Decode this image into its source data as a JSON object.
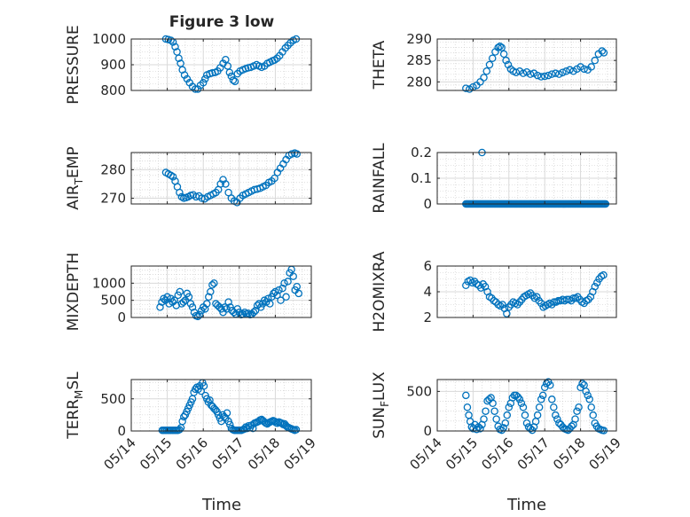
{
  "title": "Figure 3 low",
  "xlabel": "Time",
  "x_ticks": [
    "05/14",
    "05/15",
    "05/16",
    "05/17",
    "05/18",
    "05/19"
  ],
  "colors": {
    "marker": "#0072BD",
    "axis": "#262626",
    "grid": "#d9d9d9",
    "grid_minor": "#c8c8c8"
  },
  "chart_data": [
    {
      "type": "scatter",
      "id": "pressure",
      "ylabel": "PRESSURE",
      "xlim": [
        0,
        5
      ],
      "ylim": [
        800,
        1000
      ],
      "yticks": [
        800,
        900,
        1000
      ],
      "x": [
        0.96,
        1.03,
        1.1,
        1.16,
        1.22,
        1.27,
        1.32,
        1.37,
        1.42,
        1.48,
        1.55,
        1.62,
        1.7,
        1.78,
        1.85,
        1.92,
        2.0,
        2.05,
        2.1,
        2.18,
        2.25,
        2.33,
        2.4,
        2.47,
        2.55,
        2.62,
        2.68,
        2.73,
        2.78,
        2.83,
        2.88,
        2.95,
        3.02,
        3.1,
        3.18,
        3.25,
        3.32,
        3.4,
        3.48,
        3.55,
        3.62,
        3.7,
        3.78,
        3.85,
        3.92,
        3.98,
        4.05,
        4.12,
        4.2,
        4.28,
        4.35,
        4.42,
        4.5,
        4.58
      ],
      "y": [
        1000,
        998,
        995,
        988,
        970,
        950,
        925,
        905,
        880,
        860,
        845,
        830,
        815,
        805,
        805,
        820,
        830,
        845,
        860,
        865,
        868,
        870,
        875,
        888,
        905,
        920,
        895,
        870,
        855,
        840,
        835,
        865,
        875,
        880,
        885,
        888,
        890,
        895,
        900,
        895,
        890,
        895,
        905,
        910,
        915,
        918,
        925,
        935,
        950,
        965,
        975,
        985,
        995,
        1000
      ]
    },
    {
      "type": "scatter",
      "id": "theta",
      "ylabel": "THETA",
      "xlim": [
        0,
        5
      ],
      "ylim": [
        278,
        290
      ],
      "yticks": [
        280,
        285,
        290
      ],
      "x": [
        0.8,
        0.9,
        1.0,
        1.1,
        1.2,
        1.3,
        1.38,
        1.46,
        1.54,
        1.62,
        1.7,
        1.75,
        1.8,
        1.86,
        1.92,
        1.98,
        2.05,
        2.12,
        2.2,
        2.3,
        2.4,
        2.5,
        2.6,
        2.7,
        2.8,
        2.9,
        3.0,
        3.1,
        3.2,
        3.3,
        3.4,
        3.5,
        3.6,
        3.7,
        3.8,
        3.9,
        4.0,
        4.1,
        4.2,
        4.3,
        4.4,
        4.5,
        4.6,
        4.65
      ],
      "y": [
        278.5,
        278.3,
        278.8,
        279.2,
        280,
        281,
        282.5,
        284,
        285.5,
        287,
        288,
        288.3,
        288,
        286.5,
        285,
        284,
        283,
        282.5,
        282.2,
        282.5,
        282,
        282.3,
        281.8,
        282,
        281.5,
        281.2,
        281.3,
        281.5,
        281.8,
        282,
        281.8,
        282.2,
        282.5,
        282.8,
        282.5,
        283,
        283.5,
        283,
        282.8,
        283.5,
        285,
        286.5,
        287.2,
        286.8
      ]
    },
    {
      "type": "scatter",
      "id": "air_temp",
      "ylabel": "AIR",
      "ylabel_sub": "T",
      "ylabel_tail": "EMP",
      "xlim": [
        0,
        5
      ],
      "ylim": [
        268,
        286
      ],
      "yticks": [
        270,
        280
      ],
      "x": [
        0.96,
        1.03,
        1.1,
        1.16,
        1.22,
        1.28,
        1.34,
        1.4,
        1.46,
        1.52,
        1.58,
        1.65,
        1.72,
        1.8,
        1.88,
        1.96,
        2.04,
        2.12,
        2.2,
        2.28,
        2.35,
        2.42,
        2.48,
        2.55,
        2.62,
        2.7,
        2.78,
        2.86,
        2.94,
        3.02,
        3.1,
        3.18,
        3.26,
        3.34,
        3.42,
        3.5,
        3.58,
        3.66,
        3.74,
        3.82,
        3.9,
        3.98,
        4.06,
        4.14,
        4.22,
        4.3,
        4.38,
        4.46,
        4.54,
        4.6
      ],
      "y": [
        279,
        278.5,
        278,
        277.5,
        276,
        274,
        272,
        270.5,
        270,
        270.2,
        270.5,
        271,
        271.2,
        270.5,
        270.8,
        270,
        269.8,
        270.5,
        271,
        271.5,
        272,
        273,
        275,
        276.5,
        275,
        272,
        270,
        269,
        268.5,
        270,
        271,
        271.5,
        272,
        272.5,
        273,
        273.2,
        273.5,
        274,
        274.5,
        275.5,
        276,
        277,
        279,
        280.5,
        282,
        283.5,
        285,
        285.5,
        285.8,
        285.5
      ]
    },
    {
      "type": "scatter",
      "id": "rainfall",
      "ylabel": "RAINFALL",
      "xlim": [
        0,
        5
      ],
      "ylim": [
        0,
        0.2
      ],
      "yticks": [
        0,
        0.1,
        0.2
      ],
      "yticklabels": [
        "0",
        "0.1",
        "0.2"
      ],
      "x_start": 0.8,
      "x_end": 4.7,
      "count": 130,
      "spike": {
        "x": 1.25,
        "y": 0.2
      }
    },
    {
      "type": "scatter",
      "id": "mixdepth",
      "ylabel": "MIXDEPTH",
      "xlim": [
        0,
        5
      ],
      "ylim": [
        0,
        1500
      ],
      "yticks": [
        0,
        500,
        1000
      ],
      "x": [
        0.8,
        0.85,
        0.9,
        0.95,
        1.0,
        1.05,
        1.1,
        1.15,
        1.2,
        1.25,
        1.3,
        1.35,
        1.4,
        1.45,
        1.5,
        1.55,
        1.6,
        1.65,
        1.7,
        1.75,
        1.8,
        1.85,
        1.9,
        1.95,
        2.0,
        2.05,
        2.1,
        2.15,
        2.2,
        2.25,
        2.3,
        2.35,
        2.4,
        2.45,
        2.5,
        2.55,
        2.6,
        2.65,
        2.7,
        2.75,
        2.8,
        2.85,
        2.9,
        2.95,
        3.0,
        3.05,
        3.1,
        3.15,
        3.2,
        3.25,
        3.3,
        3.35,
        3.4,
        3.45,
        3.5,
        3.55,
        3.6,
        3.65,
        3.7,
        3.75,
        3.8,
        3.85,
        3.9,
        3.95,
        4.0,
        4.05,
        4.1,
        4.15,
        4.2,
        4.25,
        4.3,
        4.35,
        4.4,
        4.45,
        4.5,
        4.55,
        4.6,
        4.65
      ],
      "y": [
        300,
        450,
        550,
        500,
        600,
        400,
        550,
        450,
        500,
        350,
        650,
        750,
        400,
        450,
        500,
        700,
        600,
        400,
        300,
        150,
        50,
        30,
        80,
        200,
        300,
        250,
        400,
        600,
        750,
        950,
        1000,
        400,
        350,
        300,
        250,
        150,
        300,
        250,
        450,
        300,
        200,
        150,
        100,
        250,
        150,
        80,
        100,
        150,
        100,
        120,
        80,
        100,
        150,
        200,
        350,
        400,
        300,
        400,
        500,
        450,
        550,
        400,
        600,
        700,
        750,
        650,
        800,
        500,
        850,
        1000,
        600,
        1050,
        1300,
        1400,
        1200,
        800,
        900,
        700
      ]
    },
    {
      "type": "scatter",
      "id": "h2omixra",
      "ylabel": "H2OMIXRA",
      "xlim": [
        0,
        5
      ],
      "ylim": [
        2,
        6
      ],
      "yticks": [
        2,
        4,
        6
      ],
      "x": [
        0.8,
        0.86,
        0.92,
        0.98,
        1.04,
        1.1,
        1.16,
        1.22,
        1.28,
        1.34,
        1.4,
        1.46,
        1.52,
        1.58,
        1.64,
        1.7,
        1.76,
        1.82,
        1.88,
        1.94,
        2.0,
        2.06,
        2.12,
        2.18,
        2.24,
        2.3,
        2.36,
        2.42,
        2.48,
        2.54,
        2.6,
        2.66,
        2.72,
        2.78,
        2.84,
        2.9,
        2.96,
        3.02,
        3.08,
        3.14,
        3.2,
        3.26,
        3.32,
        3.38,
        3.44,
        3.5,
        3.56,
        3.62,
        3.68,
        3.74,
        3.8,
        3.86,
        3.92,
        3.98,
        4.04,
        4.1,
        4.16,
        4.22,
        4.28,
        4.34,
        4.4,
        4.46,
        4.52,
        4.58,
        4.64
      ],
      "y": [
        4.5,
        4.8,
        4.9,
        4.7,
        4.8,
        4.6,
        4.5,
        4.3,
        4.6,
        4.4,
        4.0,
        3.6,
        3.5,
        3.3,
        3.2,
        3.0,
        2.9,
        3.0,
        2.7,
        2.3,
        2.8,
        3.0,
        3.2,
        3.1,
        3.0,
        3.2,
        3.4,
        3.6,
        3.7,
        3.8,
        3.9,
        3.7,
        3.5,
        3.6,
        3.3,
        3.1,
        2.8,
        2.9,
        3.0,
        3.1,
        3.0,
        3.2,
        3.2,
        3.3,
        3.3,
        3.4,
        3.3,
        3.4,
        3.4,
        3.3,
        3.5,
        3.5,
        3.6,
        3.4,
        3.2,
        3.1,
        3.3,
        3.4,
        3.6,
        4.0,
        4.4,
        4.7,
        5.0,
        5.2,
        5.3
      ]
    },
    {
      "type": "scatter",
      "id": "terr_msl",
      "ylabel": "TERR",
      "ylabel_sub": "M",
      "ylabel_tail": "SL",
      "xlim": [
        0,
        5
      ],
      "ylim": [
        0,
        800
      ],
      "yticks": [
        0,
        500
      ],
      "x": [
        0.86,
        0.9,
        0.94,
        0.98,
        1.02,
        1.06,
        1.1,
        1.14,
        1.18,
        1.22,
        1.26,
        1.3,
        1.34,
        1.38,
        1.42,
        1.46,
        1.5,
        1.54,
        1.58,
        1.62,
        1.66,
        1.7,
        1.74,
        1.78,
        1.82,
        1.86,
        1.9,
        1.94,
        1.98,
        2.02,
        2.06,
        2.1,
        2.14,
        2.18,
        2.22,
        2.26,
        2.3,
        2.34,
        2.38,
        2.42,
        2.46,
        2.5,
        2.54,
        2.58,
        2.62,
        2.66,
        2.7,
        2.74,
        2.78,
        2.82,
        2.86,
        2.9,
        2.94,
        2.98,
        3.02,
        3.06,
        3.1,
        3.14,
        3.18,
        3.22,
        3.26,
        3.3,
        3.34,
        3.38,
        3.42,
        3.46,
        3.5,
        3.54,
        3.58,
        3.62,
        3.66,
        3.7,
        3.74,
        3.78,
        3.82,
        3.86,
        3.9,
        3.94,
        3.98,
        4.02,
        4.06,
        4.1,
        4.14,
        4.18,
        4.22,
        4.26,
        4.3,
        4.34,
        4.38,
        4.42,
        4.46,
        4.5,
        4.54,
        4.58
      ],
      "y": [
        10,
        10,
        10,
        10,
        10,
        10,
        10,
        10,
        10,
        10,
        10,
        10,
        20,
        50,
        150,
        220,
        250,
        300,
        350,
        400,
        450,
        500,
        600,
        650,
        680,
        650,
        700,
        620,
        750,
        700,
        550,
        500,
        450,
        480,
        400,
        380,
        350,
        330,
        300,
        250,
        200,
        150,
        250,
        220,
        200,
        280,
        150,
        100,
        40,
        20,
        10,
        10,
        10,
        10,
        10,
        10,
        20,
        30,
        60,
        40,
        80,
        50,
        90,
        40,
        120,
        130,
        140,
        150,
        170,
        180,
        160,
        140,
        120,
        110,
        130,
        140,
        150,
        160,
        150,
        130,
        120,
        140,
        130,
        120,
        100,
        110,
        80,
        60,
        50,
        40,
        30,
        20,
        10,
        20
      ]
    },
    {
      "type": "scatter",
      "id": "sun_flux",
      "ylabel": "SUN",
      "ylabel_sub": "F",
      "ylabel_tail": "LUX",
      "xlim": [
        0,
        5
      ],
      "ylim": [
        0,
        650
      ],
      "yticks": [
        0,
        500
      ],
      "x": [
        0.8,
        0.84,
        0.88,
        0.92,
        0.96,
        1.0,
        1.05,
        1.1,
        1.15,
        1.2,
        1.25,
        1.3,
        1.35,
        1.4,
        1.45,
        1.5,
        1.55,
        1.6,
        1.65,
        1.7,
        1.75,
        1.8,
        1.85,
        1.9,
        1.95,
        2.0,
        2.05,
        2.1,
        2.15,
        2.2,
        2.25,
        2.3,
        2.35,
        2.4,
        2.45,
        2.5,
        2.55,
        2.6,
        2.65,
        2.7,
        2.75,
        2.8,
        2.85,
        2.9,
        2.95,
        3.0,
        3.05,
        3.1,
        3.15,
        3.2,
        3.25,
        3.3,
        3.35,
        3.4,
        3.45,
        3.5,
        3.55,
        3.6,
        3.65,
        3.7,
        3.75,
        3.8,
        3.85,
        3.9,
        3.95,
        4.0,
        4.05,
        4.1,
        4.15,
        4.2,
        4.25,
        4.3,
        4.35,
        4.4,
        4.45,
        4.5,
        4.55,
        4.6,
        4.65
      ],
      "y": [
        450,
        300,
        200,
        120,
        50,
        30,
        80,
        20,
        50,
        30,
        80,
        150,
        250,
        380,
        400,
        420,
        350,
        250,
        150,
        60,
        20,
        10,
        40,
        100,
        200,
        300,
        350,
        420,
        450,
        450,
        430,
        400,
        350,
        300,
        200,
        100,
        50,
        30,
        10,
        50,
        120,
        200,
        300,
        400,
        450,
        550,
        600,
        620,
        580,
        400,
        300,
        200,
        150,
        100,
        80,
        50,
        30,
        20,
        10,
        30,
        60,
        80,
        150,
        250,
        300,
        550,
        600,
        580,
        500,
        450,
        400,
        300,
        200,
        100,
        60,
        30,
        20,
        10,
        5
      ]
    }
  ]
}
